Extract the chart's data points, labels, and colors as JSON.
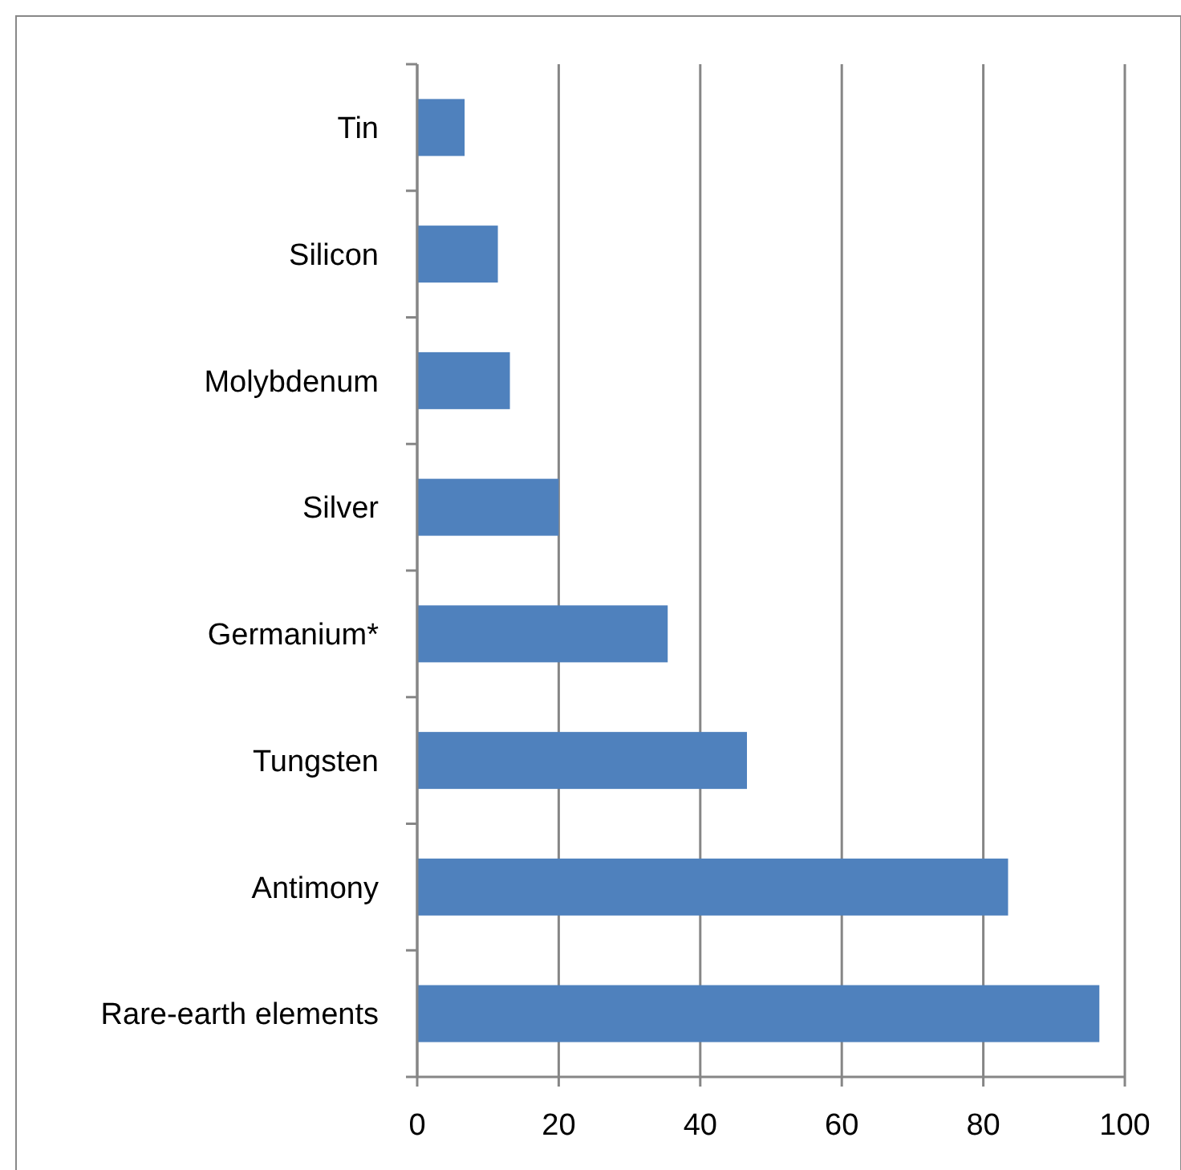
{
  "chart_data": {
    "type": "bar",
    "orientation": "horizontal",
    "categories": [
      "Tin",
      "Silicon",
      "Molybdenum",
      "Silver",
      "Germanium*",
      "Tungsten",
      "Antimony",
      "Rare-earth elements"
    ],
    "values": [
      6.7,
      11.4,
      13.1,
      20.0,
      35.4,
      46.6,
      83.5,
      96.4
    ],
    "color": "#4f81bd",
    "xlim": [
      0,
      100
    ],
    "xticks": [
      0,
      20,
      40,
      60,
      80,
      100
    ],
    "grid": "x"
  }
}
